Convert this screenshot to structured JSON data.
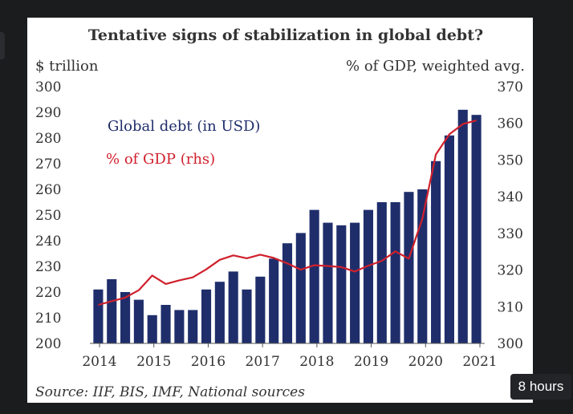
{
  "chart_data": {
    "type": "bar",
    "title": "Tentative signs of stabilization in global debt?",
    "ylabel": "$ trillion",
    "y2label": "% of GDP, weighted avg.",
    "source": "Source: IIF, BIS, IMF, National sources",
    "x_tick_labels": [
      "2014",
      "2015",
      "2016",
      "2017",
      "2018",
      "2019",
      "2020",
      "2021"
    ],
    "ylim": [
      200,
      300
    ],
    "y_ticks": [
      200,
      210,
      220,
      230,
      240,
      250,
      260,
      270,
      280,
      290,
      300
    ],
    "y2lim": [
      300,
      370
    ],
    "y2_ticks": [
      300,
      310,
      320,
      330,
      340,
      350,
      360,
      370
    ],
    "grid": false,
    "legend_placement": "top-left",
    "series": [
      {
        "name": "Global debt (in USD)",
        "type": "bar",
        "axis": "left",
        "color": "#1f2e6b",
        "values": [
          221,
          225,
          220,
          217,
          211,
          215,
          213,
          213,
          221,
          224,
          228,
          221,
          226,
          233,
          239,
          243,
          252,
          247,
          246,
          247,
          252,
          255,
          255,
          259,
          260,
          271,
          281,
          291,
          289
        ]
      },
      {
        "name": "% of GDP (rhs)",
        "type": "line",
        "axis": "right",
        "color": "#d0202c",
        "values": [
          310.5,
          311.5,
          312.5,
          314.5,
          318.5,
          316.2,
          317.2,
          318.0,
          320.2,
          322.8,
          324.0,
          323.2,
          324.2,
          323.3,
          321.8,
          320.1,
          321.3,
          321.1,
          320.8,
          319.6,
          321.2,
          322.5,
          325.1,
          323.1,
          334.0,
          351.5,
          357.0,
          359.8,
          360.8
        ]
      }
    ]
  },
  "badge": {
    "text": "8 hours"
  }
}
